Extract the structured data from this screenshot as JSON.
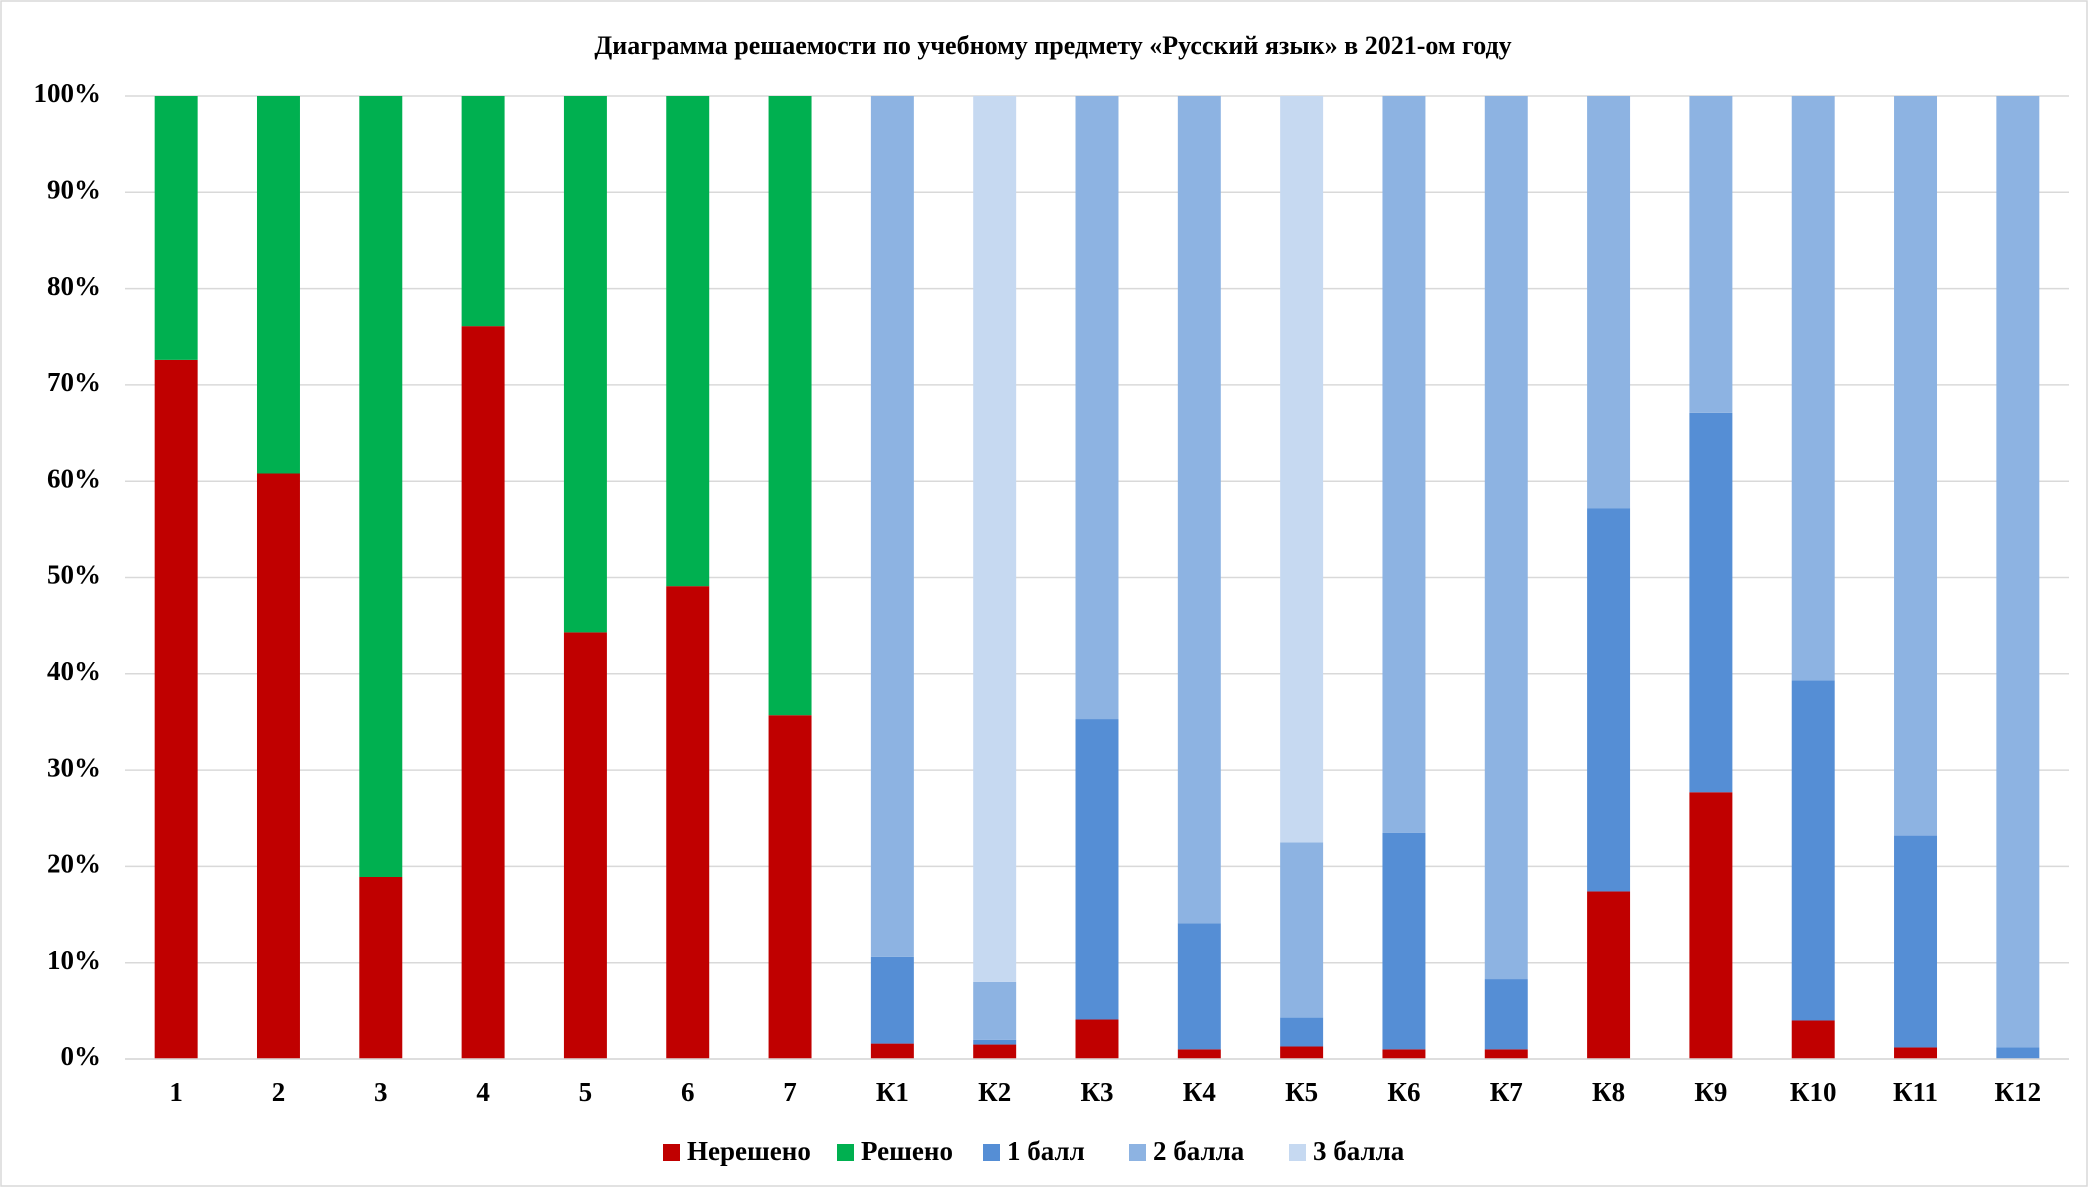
{
  "chart_data": {
    "type": "stacked_bar",
    "title": "Диаграмма решаемости по учебному предмету «Русский язык»  в 2021-ом году",
    "categories": [
      "1",
      "2",
      "3",
      "4",
      "5",
      "6",
      "7",
      "К1",
      "К2",
      "К3",
      "К4",
      "К5",
      "К6",
      "К7",
      "К8",
      "К9",
      "К10",
      "К11",
      "К12"
    ],
    "series": [
      {
        "name": "Нерешено",
        "color": "#c00000",
        "values": [
          72.6,
          60.8,
          18.9,
          76.1,
          44.3,
          49.1,
          35.7,
          1.6,
          1.5,
          4.1,
          1.0,
          1.3,
          1.0,
          1.0,
          17.4,
          27.7,
          4.0,
          1.2,
          null
        ]
      },
      {
        "name": "Решено",
        "color": "#00b050",
        "values": [
          27.4,
          39.2,
          81.1,
          23.9,
          55.7,
          50.9,
          64.3,
          null,
          null,
          null,
          null,
          null,
          null,
          null,
          null,
          null,
          null,
          null,
          null
        ]
      },
      {
        "name": "1 балл",
        "color": "#558ed5",
        "values": [
          null,
          null,
          null,
          null,
          null,
          null,
          null,
          9.0,
          0.5,
          31.2,
          13.1,
          3.0,
          22.5,
          7.3,
          39.8,
          39.4,
          35.3,
          22.0,
          1.2
        ]
      },
      {
        "name": "2 балла",
        "color": "#8db3e2",
        "values": [
          null,
          null,
          null,
          null,
          null,
          null,
          null,
          89.4,
          6.0,
          64.7,
          85.9,
          18.2,
          76.5,
          91.7,
          42.8,
          32.9,
          60.7,
          76.8,
          98.8
        ]
      },
      {
        "name": "3 балла",
        "color": "#c6d9f1",
        "values": [
          null,
          null,
          null,
          null,
          null,
          null,
          null,
          null,
          92.0,
          null,
          null,
          77.5,
          null,
          null,
          null,
          null,
          null,
          null,
          null
        ]
      }
    ],
    "ylim": [
      0,
      100
    ],
    "yticks": [
      {
        "value": 0,
        "label": "0%"
      },
      {
        "value": 10,
        "label": "10%"
      },
      {
        "value": 20,
        "label": "20%"
      },
      {
        "value": 30,
        "label": "30%"
      },
      {
        "value": 40,
        "label": "40%"
      },
      {
        "value": 50,
        "label": "50%"
      },
      {
        "value": 60,
        "label": "60%"
      },
      {
        "value": 70,
        "label": "70%"
      },
      {
        "value": 80,
        "label": "80%"
      },
      {
        "value": 90,
        "label": "90%"
      },
      {
        "value": 100,
        "label": "100%"
      }
    ],
    "grid": true,
    "legend": "bottom"
  }
}
